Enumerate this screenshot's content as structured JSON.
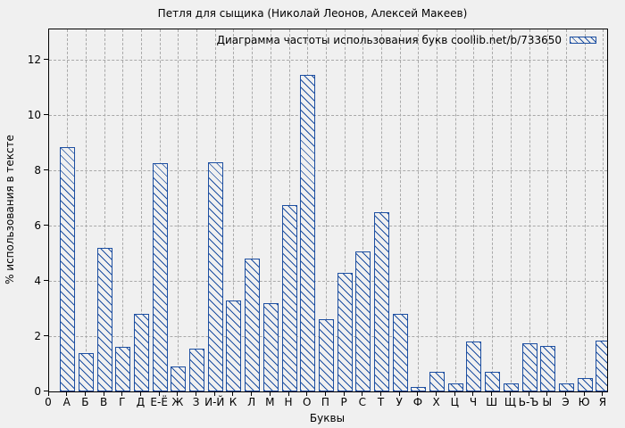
{
  "title": "Петля для сыщика (Николай Леонов, Алексей Макеев)",
  "legend": {
    "label": "Диаграмма частоты использования букв coollib.net/b/733650"
  },
  "axes": {
    "xlabel": "Буквы",
    "ylabel": "% использования в тексте",
    "x_origin_label": "0",
    "yticks": [
      0,
      2,
      4,
      6,
      8,
      10,
      12
    ]
  },
  "colors": {
    "bar": "#1d4fa1",
    "grid": "#a9a9a9",
    "frame": "#000000",
    "background": "#f0f0f0"
  },
  "chart_data": {
    "type": "bar",
    "title": "Петля для сыщика (Николай Леонов, Алексей Макеев)",
    "legend": "Диаграмма частоты использования букв coollib.net/b/733650",
    "xlabel": "Буквы",
    "ylabel": "% использования в тексте",
    "categories": [
      "А",
      "Б",
      "В",
      "Г",
      "Д",
      "Е-Ё",
      "Ж",
      "З",
      "И-Й",
      "К",
      "Л",
      "М",
      "Н",
      "О",
      "П",
      "Р",
      "С",
      "Т",
      "У",
      "Ф",
      "Х",
      "Ц",
      "Ч",
      "Ш",
      "Щ",
      "Ь-Ъ",
      "Ы",
      "Э",
      "Ю",
      "Я"
    ],
    "values": [
      8.85,
      1.4,
      5.2,
      1.6,
      2.8,
      8.25,
      0.9,
      1.55,
      8.3,
      3.3,
      4.8,
      3.2,
      6.75,
      11.45,
      2.6,
      4.3,
      5.05,
      6.5,
      2.8,
      0.15,
      0.7,
      0.3,
      1.8,
      0.7,
      0.3,
      1.75,
      1.65,
      0.3,
      0.5,
      1.85
    ],
    "ylim": [
      0,
      13.1
    ],
    "yticks": [
      0,
      2,
      4,
      6,
      8,
      10,
      12
    ],
    "grid": true,
    "legend_position": "top-right",
    "bar_style": "hatched"
  }
}
